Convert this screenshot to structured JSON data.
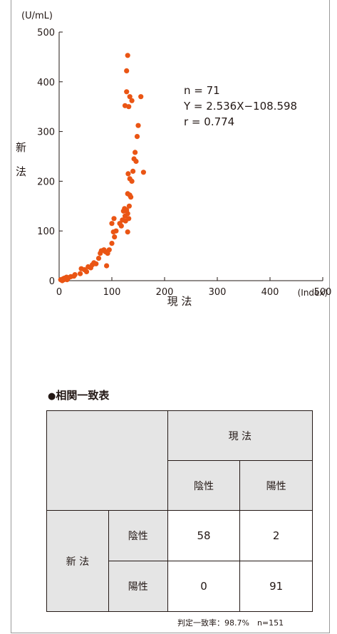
{
  "chart_data": {
    "type": "scatter",
    "y_unit": "(U/mL)",
    "x_unit": "(Index)",
    "xlabel": "現 法",
    "ylabel": "新法",
    "ylabel_chars": [
      "新",
      "法"
    ],
    "xlim": [
      0,
      500
    ],
    "ylim": [
      0,
      500
    ],
    "x_ticks": [
      0,
      100,
      200,
      300,
      400,
      500
    ],
    "y_ticks": [
      0,
      100,
      200,
      300,
      400,
      500
    ],
    "annotation": [
      "n = 71",
      "Y = 2.536X−108.598",
      "r = 0.774"
    ],
    "point_color": "#ea5514",
    "points": [
      [
        3,
        2
      ],
      [
        5,
        1
      ],
      [
        7,
        3
      ],
      [
        9,
        2
      ],
      [
        10,
        5
      ],
      [
        12,
        3
      ],
      [
        14,
        7
      ],
      [
        15,
        2
      ],
      [
        16,
        4
      ],
      [
        22,
        8
      ],
      [
        30,
        12
      ],
      [
        40,
        14
      ],
      [
        42,
        24
      ],
      [
        48,
        22
      ],
      [
        55,
        28
      ],
      [
        60,
        26
      ],
      [
        63,
        32
      ],
      [
        66,
        36
      ],
      [
        70,
        34
      ],
      [
        75,
        45
      ],
      [
        78,
        55
      ],
      [
        80,
        60
      ],
      [
        85,
        62
      ],
      [
        88,
        58
      ],
      [
        90,
        30
      ],
      [
        92,
        55
      ],
      [
        95,
        62
      ],
      [
        100,
        75
      ],
      [
        103,
        98
      ],
      [
        105,
        88
      ],
      [
        108,
        100
      ],
      [
        100,
        115
      ],
      [
        104,
        125
      ],
      [
        115,
        115
      ],
      [
        118,
        110
      ],
      [
        120,
        122
      ],
      [
        122,
        140
      ],
      [
        124,
        145
      ],
      [
        125,
        130
      ],
      [
        126,
        120
      ],
      [
        128,
        142
      ],
      [
        130,
        135
      ],
      [
        132,
        125
      ],
      [
        130,
        98
      ],
      [
        133,
        150
      ],
      [
        134,
        172
      ],
      [
        136,
        168
      ],
      [
        138,
        200
      ],
      [
        130,
        175
      ],
      [
        131,
        215
      ],
      [
        134,
        205
      ],
      [
        140,
        220
      ],
      [
        142,
        245
      ],
      [
        144,
        258
      ],
      [
        146,
        240
      ],
      [
        148,
        290
      ],
      [
        150,
        312
      ],
      [
        160,
        218
      ],
      [
        125,
        352
      ],
      [
        128,
        422
      ],
      [
        130,
        453
      ],
      [
        128,
        380
      ],
      [
        132,
        350
      ],
      [
        134,
        370
      ],
      [
        138,
        362
      ],
      [
        155,
        370
      ],
      [
        6,
        0
      ],
      [
        8,
        4
      ],
      [
        18,
        6
      ],
      [
        28,
        9
      ],
      [
        52,
        18
      ]
    ]
  },
  "table": {
    "title": "相関一致表",
    "col_group": "現 法",
    "row_group": "新 法",
    "col_labels": [
      "陰性",
      "陽性"
    ],
    "row_labels": [
      "陰性",
      "陽性"
    ],
    "cells": [
      [
        "58",
        "2"
      ],
      [
        "0",
        "91"
      ]
    ],
    "note": "判定一致率：98.7%　n=151"
  }
}
